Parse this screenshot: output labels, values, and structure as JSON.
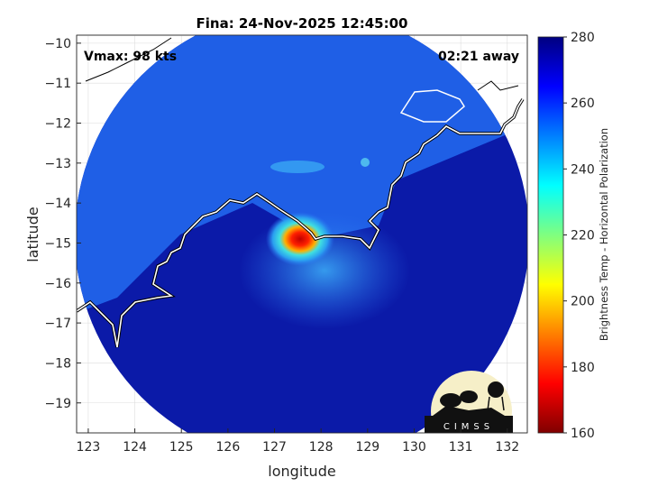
{
  "title": "Fina: 24-Nov-2025 12:45:00",
  "annotations": {
    "vmax": "Vmax: 98 kts",
    "time_away": "02:21 away"
  },
  "xaxis": {
    "label": "longitude",
    "ticks": [
      123,
      124,
      125,
      126,
      127,
      128,
      129,
      130,
      131,
      132
    ],
    "range": [
      122.75,
      132.43
    ]
  },
  "yaxis": {
    "label": "latitude",
    "ticks": [
      -10,
      -11,
      -12,
      -13,
      -14,
      -15,
      -16,
      -17,
      -18,
      -19
    ],
    "range": [
      -19.75,
      -9.8
    ]
  },
  "grid": true,
  "colorbar": {
    "label": "Brightness Temp - Horizontal Polarization",
    "ticks": [
      280,
      260,
      240,
      220,
      200,
      180,
      160
    ],
    "range": [
      160,
      280
    ],
    "colormap": "jet"
  },
  "storm_center": {
    "lon": 127.7,
    "lat": -14.8
  },
  "logo": {
    "text": "CIMSS"
  },
  "colors": {
    "background_cold": "#0a0f96",
    "land": "#1f55e0",
    "coast": "#ffffff"
  }
}
